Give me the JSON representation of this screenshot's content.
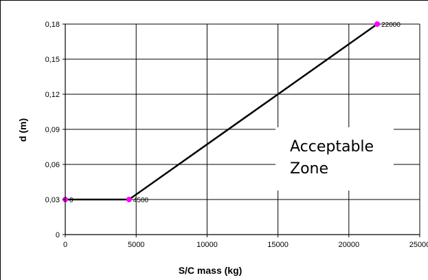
{
  "chart_data": {
    "type": "line",
    "title": "",
    "xlabel": "S/C mass (kg)",
    "ylabel": "d (m)",
    "xlim": [
      0,
      25000
    ],
    "ylim": [
      0,
      0.18
    ],
    "grid": true,
    "legend": "none",
    "x_ticks": [
      "0",
      "5000",
      "10000",
      "15000",
      "20000",
      "25000"
    ],
    "y_ticks": [
      "0",
      "0,03",
      "0,06",
      "0,09",
      "0,12",
      "0,15",
      "0,18"
    ],
    "series": [
      {
        "points": [
          {
            "x": 0,
            "y": 0.03,
            "label": "0"
          },
          {
            "x": 4500,
            "y": 0.03,
            "label": "4500"
          },
          {
            "x": 22000,
            "y": 0.18,
            "label": "22000"
          }
        ]
      }
    ],
    "annotations": [
      "Acceptable",
      "Zone"
    ],
    "colors": {
      "line": "#000000",
      "marker": "#ff00ff",
      "grid": "#000000",
      "background": "#ffffff"
    }
  }
}
